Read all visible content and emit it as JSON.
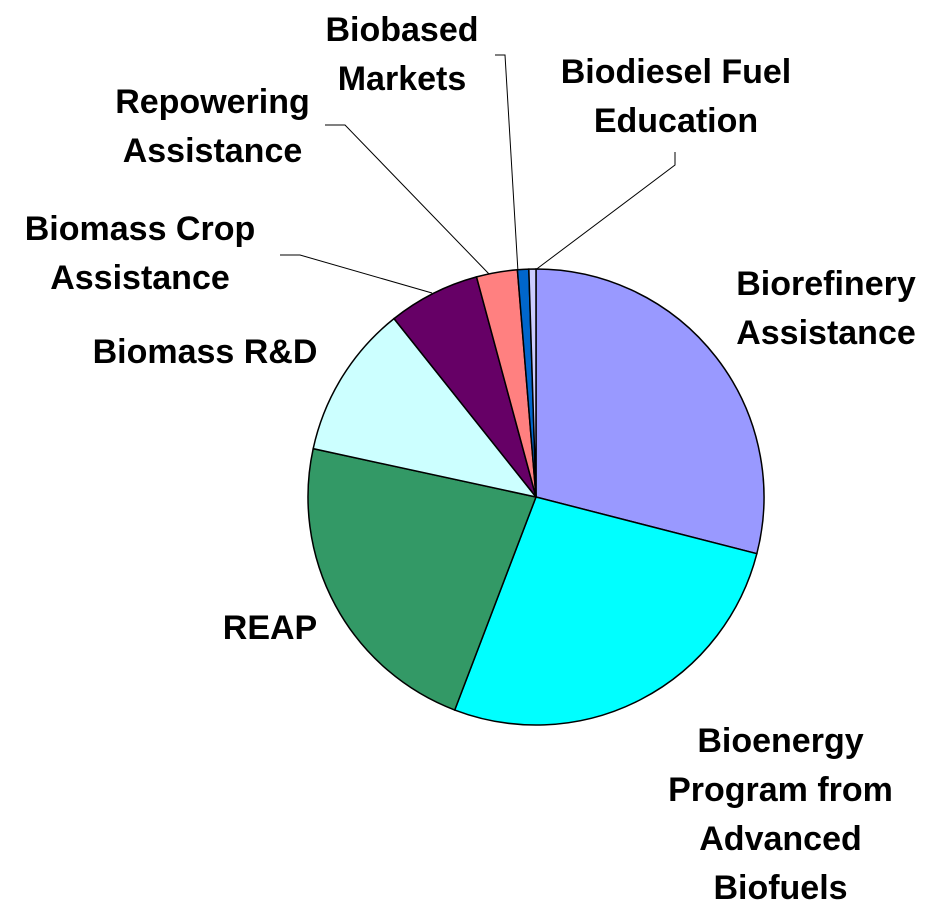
{
  "chart_data": {
    "type": "pie",
    "categories": [
      "Biorefinery Assistance",
      "Bioenergy Program from Advanced Biofuels",
      "REAP",
      "Biomass R&D",
      "Biomass Crop Assistance",
      "Repowering Assistance",
      "Biobased Markets",
      "Biodiesel Fuel Education"
    ],
    "values": [
      29,
      26.8,
      22.6,
      10.9,
      6.5,
      2.9,
      0.8,
      0.5
    ],
    "colors": [
      "#9999FF",
      "#00FFFF",
      "#339966",
      "#CCFFFF",
      "#660066",
      "#FF8080",
      "#0066CC",
      "#CCCCFF"
    ]
  }
}
